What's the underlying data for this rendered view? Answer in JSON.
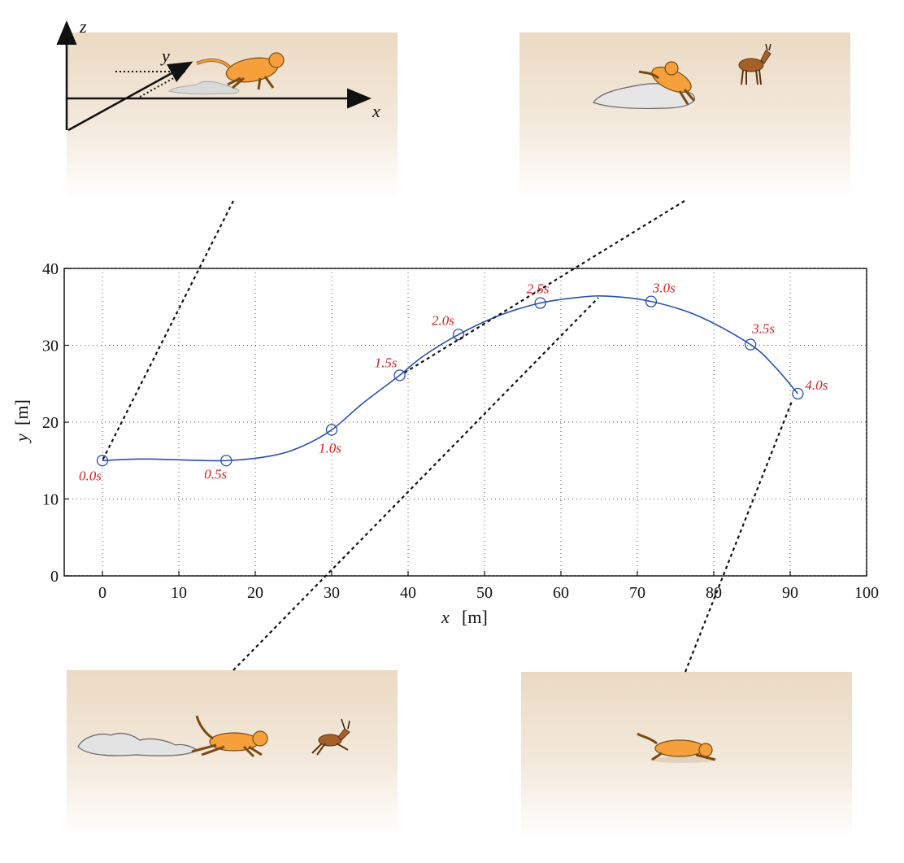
{
  "chart_data": {
    "type": "line",
    "title": "",
    "xlabel": "x",
    "xlabel_unit": "[m]",
    "ylabel": "y",
    "ylabel_unit": "[m]",
    "xlim": [
      -5,
      100
    ],
    "ylim": [
      0,
      40
    ],
    "xticks": [
      0,
      10,
      20,
      30,
      40,
      50,
      60,
      70,
      80,
      90,
      100
    ],
    "yticks": [
      0,
      10,
      20,
      30,
      40
    ],
    "grid": true,
    "line_color": "#2b4fb0",
    "label_color": "#d42020",
    "series": [
      {
        "markers": [
          {
            "t": "0.0s",
            "x": 0,
            "y": 15
          },
          {
            "t": "0.5s",
            "x": 16.2,
            "y": 15
          },
          {
            "t": "1.0s",
            "x": 30,
            "y": 19
          },
          {
            "t": "1.5s",
            "x": 38.9,
            "y": 26.1
          },
          {
            "t": "2.0s",
            "x": 46.6,
            "y": 31.4
          },
          {
            "t": "2.5s",
            "x": 57.3,
            "y": 35.5
          },
          {
            "t": "3.0s",
            "x": 71.8,
            "y": 35.7
          },
          {
            "t": "3.5s",
            "x": 84.8,
            "y": 30.1
          },
          {
            "t": "4.0s",
            "x": 91,
            "y": 23.7
          }
        ],
        "path": [
          [
            0,
            15
          ],
          [
            5,
            15.2
          ],
          [
            10,
            15.1
          ],
          [
            16.2,
            15
          ],
          [
            22,
            15.6
          ],
          [
            26,
            16.8
          ],
          [
            30,
            19
          ],
          [
            34,
            22.4
          ],
          [
            38.9,
            26.1
          ],
          [
            42,
            28.6
          ],
          [
            46.6,
            31.4
          ],
          [
            52,
            33.9
          ],
          [
            57.3,
            35.5
          ],
          [
            62,
            36.2
          ],
          [
            66,
            36.4
          ],
          [
            71.8,
            35.7
          ],
          [
            78,
            33.8
          ],
          [
            84.8,
            30.1
          ],
          [
            88,
            27.2
          ],
          [
            91,
            23.7
          ]
        ]
      }
    ]
  },
  "panels": {
    "top_left": {
      "axis_labels": {
        "x": "x",
        "y": "y",
        "z": "z"
      }
    },
    "colors": {
      "sand_top": "#ecdcc4",
      "sand_bottom": "#ffffff",
      "cheetah": "#f5a03a",
      "gazelle": "#a5602a"
    }
  }
}
